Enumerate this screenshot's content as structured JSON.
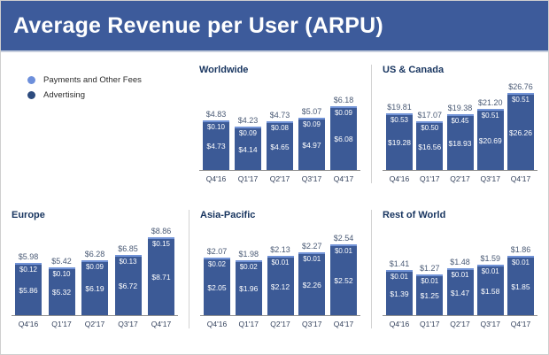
{
  "header": {
    "title": "Average Revenue per User (ARPU)"
  },
  "colors": {
    "header_bg": "#3d5b9b",
    "payments": "#7293d6",
    "advertising": "#3c5a96",
    "legend_payments_dot": "#6d8fdb",
    "legend_advertising_dot": "#2d4b7e"
  },
  "legend": {
    "items": [
      {
        "label": "Payments and Other Fees",
        "color": "#6d8fdb"
      },
      {
        "label": "Advertising",
        "color": "#2d4b7e"
      }
    ]
  },
  "chart_data": [
    {
      "type": "bar",
      "stacked": true,
      "title": "Worldwide",
      "categories": [
        "Q4'16",
        "Q1'17",
        "Q2'17",
        "Q3'17",
        "Q4'17"
      ],
      "series": [
        {
          "name": "Payments and Other Fees",
          "values": [
            0.1,
            0.09,
            0.08,
            0.09,
            0.09
          ]
        },
        {
          "name": "Advertising",
          "values": [
            4.73,
            4.14,
            4.65,
            4.97,
            6.08
          ]
        }
      ],
      "totals": [
        4.83,
        4.23,
        4.73,
        5.07,
        6.18
      ],
      "currency": "$",
      "legend_position": "top-left",
      "grid": false
    },
    {
      "type": "bar",
      "stacked": true,
      "title": "US & Canada",
      "categories": [
        "Q4'16",
        "Q1'17",
        "Q2'17",
        "Q3'17",
        "Q4'17"
      ],
      "series": [
        {
          "name": "Payments and Other Fees",
          "values": [
            0.53,
            0.5,
            0.45,
            0.51,
            0.51
          ]
        },
        {
          "name": "Advertising",
          "values": [
            19.28,
            16.56,
            18.93,
            20.69,
            26.26
          ]
        }
      ],
      "totals": [
        19.81,
        17.07,
        19.38,
        21.2,
        26.76
      ],
      "currency": "$",
      "grid": false
    },
    {
      "type": "bar",
      "stacked": true,
      "title": "Europe",
      "categories": [
        "Q4'16",
        "Q1'17",
        "Q2'17",
        "Q3'17",
        "Q4'17"
      ],
      "series": [
        {
          "name": "Payments and Other Fees",
          "values": [
            0.12,
            0.1,
            0.09,
            0.13,
            0.15
          ]
        },
        {
          "name": "Advertising",
          "values": [
            5.86,
            5.32,
            6.19,
            6.72,
            8.71
          ]
        }
      ],
      "totals": [
        5.98,
        5.42,
        6.28,
        6.85,
        8.86
      ],
      "currency": "$",
      "grid": false
    },
    {
      "type": "bar",
      "stacked": true,
      "title": "Asia-Pacific",
      "categories": [
        "Q4'16",
        "Q1'17",
        "Q2'17",
        "Q3'17",
        "Q4'17"
      ],
      "series": [
        {
          "name": "Payments and Other Fees",
          "values": [
            0.02,
            0.02,
            0.01,
            0.01,
            0.01
          ]
        },
        {
          "name": "Advertising",
          "values": [
            2.05,
            1.96,
            2.12,
            2.26,
            2.52
          ]
        }
      ],
      "totals": [
        2.07,
        1.98,
        2.13,
        2.27,
        2.54
      ],
      "currency": "$",
      "grid": false
    },
    {
      "type": "bar",
      "stacked": true,
      "title": "Rest of World",
      "categories": [
        "Q4'16",
        "Q1'17",
        "Q2'17",
        "Q3'17",
        "Q4'17"
      ],
      "series": [
        {
          "name": "Payments and Other Fees",
          "values": [
            0.01,
            0.01,
            0.01,
            0.01,
            0.01
          ]
        },
        {
          "name": "Advertising",
          "values": [
            1.39,
            1.25,
            1.47,
            1.58,
            1.85
          ]
        }
      ],
      "totals": [
        1.41,
        1.27,
        1.48,
        1.59,
        1.86
      ],
      "currency": "$",
      "grid": false
    }
  ]
}
